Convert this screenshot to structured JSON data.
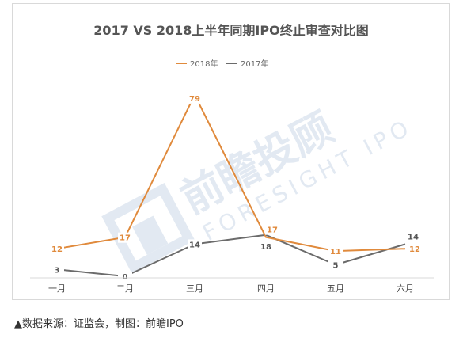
{
  "chart_data": {
    "type": "line",
    "title": "2017 VS 2018上半年同期IPO终止审查对比图",
    "categories": [
      "一月",
      "二月",
      "三月",
      "四月",
      "五月",
      "六月"
    ],
    "series": [
      {
        "name": "2018年",
        "values": [
          12,
          17,
          79,
          17,
          11,
          12
        ],
        "color": "#e08a3c"
      },
      {
        "name": "2017年",
        "values": [
          3,
          0,
          14,
          18,
          5,
          14
        ],
        "color": "#6b6b6b"
      }
    ],
    "ylim": [
      0,
      80
    ],
    "grid": false,
    "legend_position": "top"
  },
  "watermark": {
    "brand_cn": "前瞻投顾",
    "brand_en": "FORESIGHT IPO"
  },
  "source_note": "▲数据来源：证监会，制图：前瞻IPO"
}
